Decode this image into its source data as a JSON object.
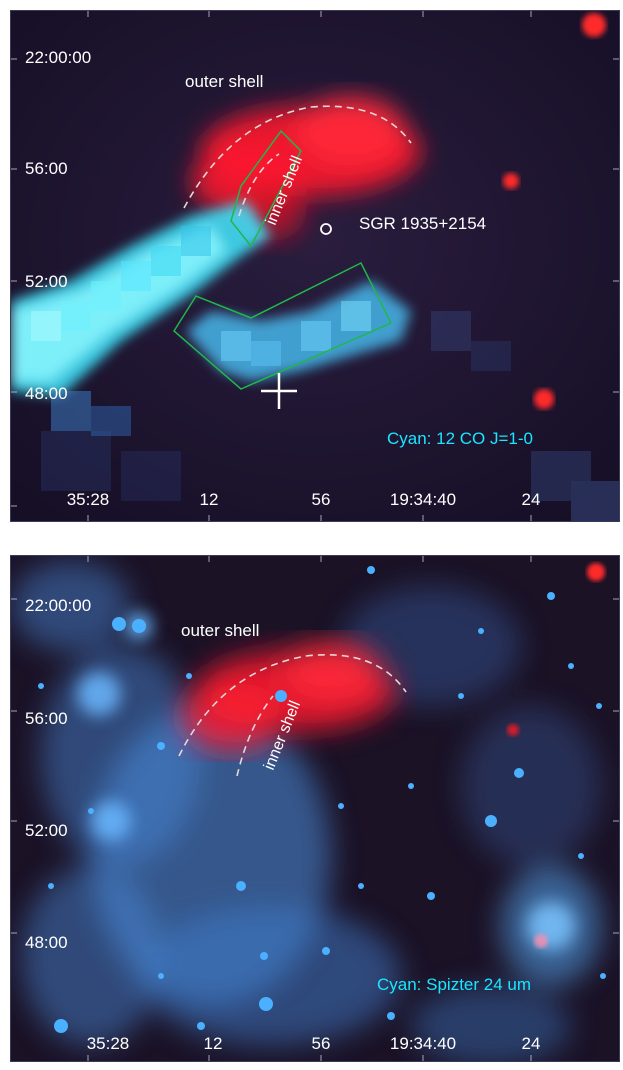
{
  "top_panel": {
    "dec_labels": [
      "22:00:00",
      "56:00",
      "52:00",
      "48:00"
    ],
    "ra_labels": [
      "35:28",
      "12",
      "56",
      "19:34:40",
      "24"
    ],
    "outer_shell_label": "outer shell",
    "inner_shell_label": "inner shell",
    "source_label": "SGR 1935+2154",
    "legend": "Cyan: 12 CO J=1-0"
  },
  "bottom_panel": {
    "dec_labels": [
      "22:00:00",
      "56:00",
      "52:00",
      "48:00"
    ],
    "ra_labels": [
      "35:28",
      "12",
      "56",
      "19:34:40",
      "24"
    ],
    "outer_shell_label": "outer shell",
    "inner_shell_label": "inner shell",
    "legend": "Cyan: Spizter 24 um"
  },
  "colors": {
    "background": "#1a1430",
    "shell_red": "#ff1a2e",
    "co_cyan": "#3fe8ff",
    "spitzer_blue": "#4aa8ff",
    "region_green": "#1fb84a",
    "legend_cyan": "#19e6ff",
    "label_white": "#ffffff"
  }
}
